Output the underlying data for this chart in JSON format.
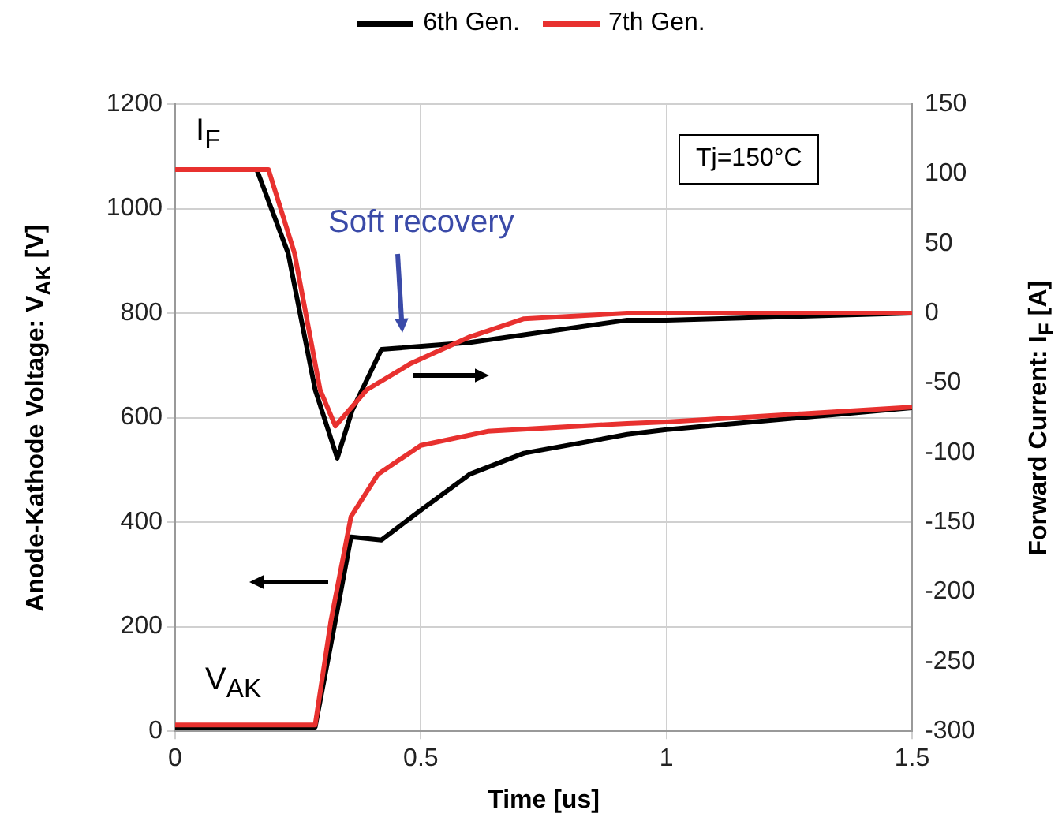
{
  "chart_data": {
    "type": "line",
    "xlabel": "Time [us]",
    "ylabel": "Anode-Kathode Voltage: V$_{AK}$ [V]",
    "y2label": "Forward Current: I$_{F}$ [A]",
    "xlim": [
      0,
      1.5
    ],
    "xticks": [
      0,
      0.5,
      1,
      1.5
    ],
    "ylim": [
      0,
      1200
    ],
    "yticks": [
      0,
      200,
      400,
      600,
      800,
      1000,
      1200
    ],
    "y2lim": [
      -300,
      150
    ],
    "y2ticks": [
      -300,
      -250,
      -200,
      -150,
      -100,
      -50,
      0,
      50,
      100,
      150
    ],
    "grid": true,
    "legend": "top",
    "marker": "none",
    "line_style": "solid",
    "annotations": [
      "Tj=150°C",
      "Soft recovery",
      "I$_{F}$",
      "V$_{AK}$"
    ],
    "series": [
      {
        "name": "6th Gen.",
        "color": "#000000",
        "axis": "y2",
        "x": [
          0,
          0.166,
          0.23,
          0.285,
          0.33,
          0.36,
          0.42,
          0.6,
          0.92,
          1.0,
          1.5
        ],
        "values": [
          103,
          103,
          43,
          -55,
          -104,
          -70,
          -26,
          -21,
          -5,
          -5,
          0
        ]
      },
      {
        "name": "7th Gen.",
        "color": "#e8312f",
        "axis": "y2",
        "x": [
          0,
          0.19,
          0.243,
          0.295,
          0.326,
          0.39,
          0.48,
          0.6,
          0.71,
          0.92,
          1.5
        ],
        "values": [
          103,
          103,
          43,
          -55,
          -81,
          -55,
          -36,
          -17,
          -4,
          0,
          0
        ]
      },
      {
        "color": "#000000",
        "x": [
          0,
          0.285,
          0.326,
          0.358,
          0.42,
          0.5,
          0.6,
          0.71,
          0.92,
          1.0,
          1.5
        ],
        "values": [
          8,
          8,
          211,
          372,
          366,
          423,
          492,
          532,
          568,
          577,
          619
        ]
      },
      {
        "color": "#e8312f",
        "x": [
          0,
          0.285,
          0.317,
          0.358,
          0.413,
          0.5,
          0.636,
          0.92,
          1.0,
          1.5
        ],
        "values": [
          12,
          12,
          211,
          411,
          492,
          547,
          574,
          589,
          592,
          620
        ]
      }
    ]
  }
}
